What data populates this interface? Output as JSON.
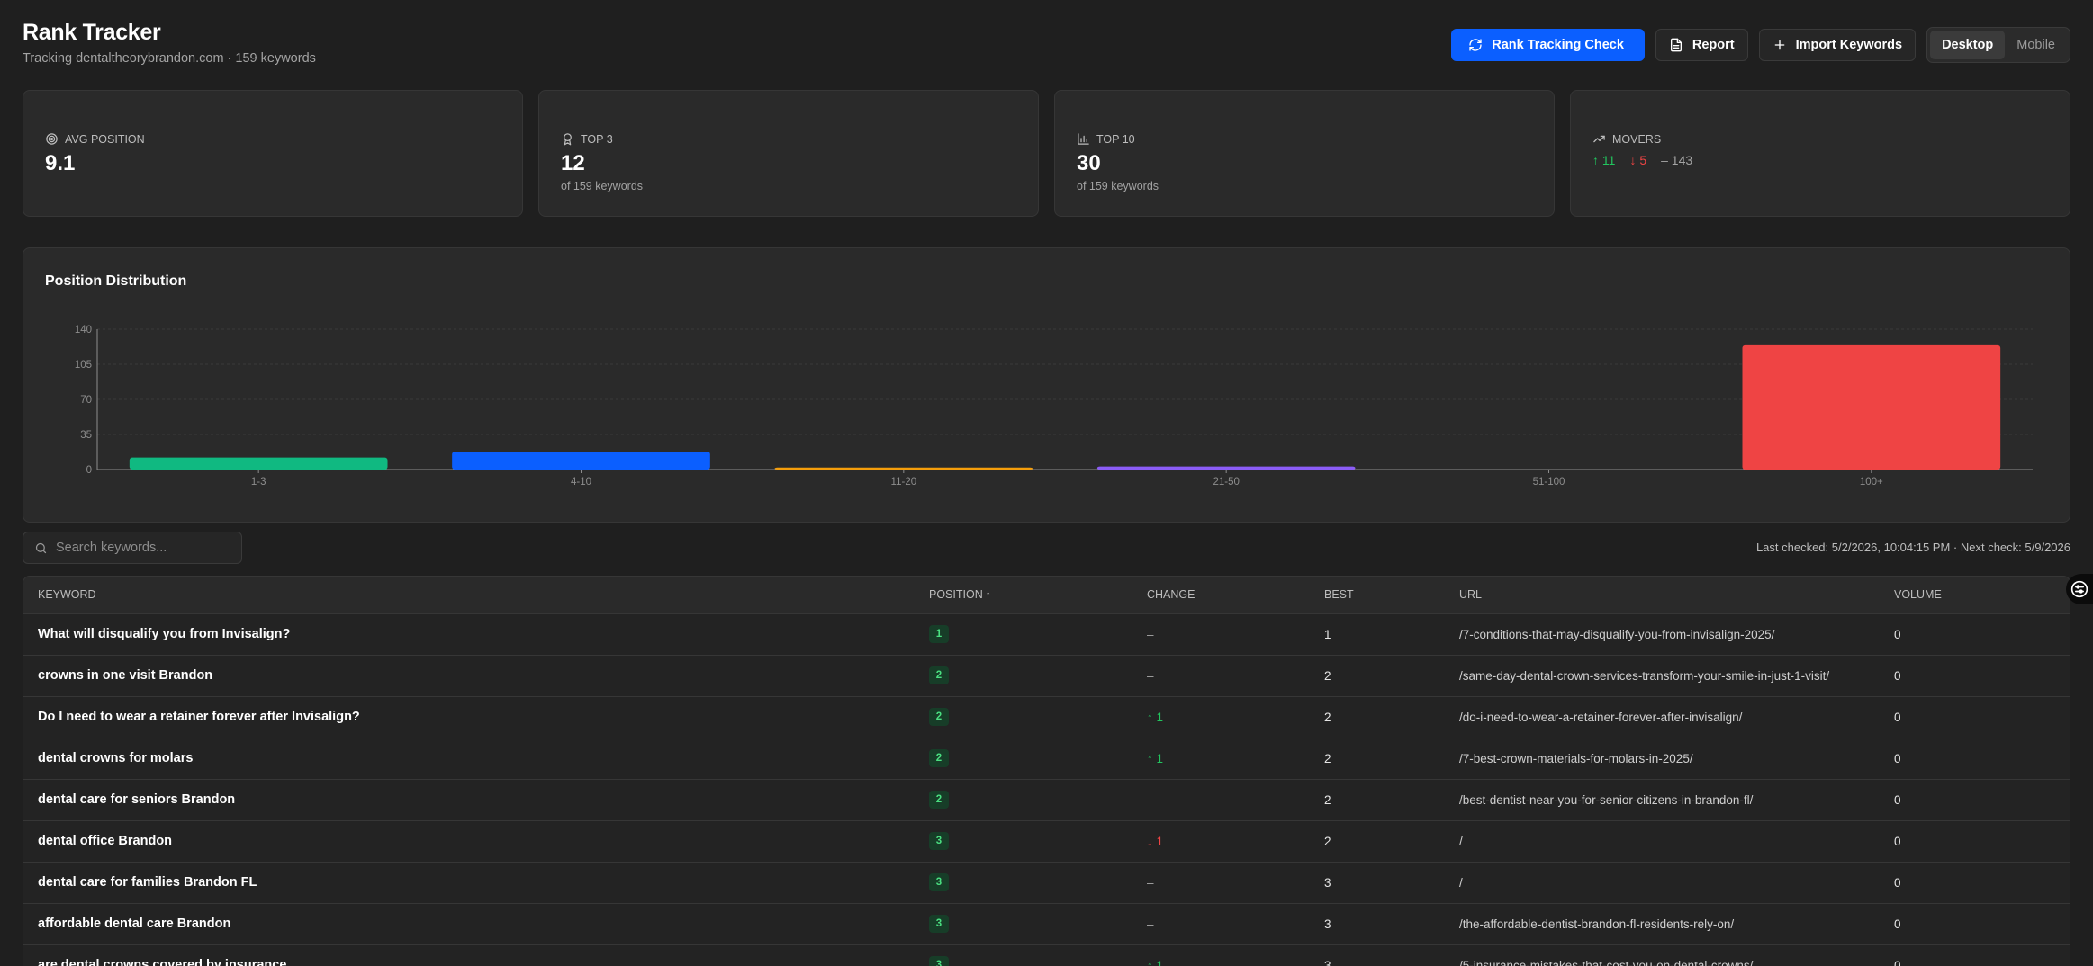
{
  "header": {
    "title": "Rank Tracker",
    "subtitle": "Tracking dentaltheorybrandon.com · 159 keywords"
  },
  "actions": {
    "rank_check_label": "Rank Tracking Check",
    "report_label": "Report",
    "import_label": "Import Keywords",
    "device_options": [
      "Desktop",
      "Mobile"
    ],
    "device_selected": "Desktop"
  },
  "stats": {
    "avg_position": {
      "label": "AVG POSITION",
      "value": "9.1"
    },
    "top3": {
      "label": "TOP 3",
      "value": "12",
      "sub": "of 159 keywords"
    },
    "top10": {
      "label": "TOP 10",
      "value": "30",
      "sub": "of 159 keywords"
    },
    "movers": {
      "label": "MOVERS",
      "up": "↑ 11",
      "down": "↓ 5",
      "flat": "– 143"
    }
  },
  "chart_title": "Position Distribution",
  "chart_data": {
    "type": "bar",
    "title": "Position Distribution",
    "categories": [
      "1-3",
      "4-10",
      "11-20",
      "21-50",
      "51-100",
      "100+"
    ],
    "values": [
      12,
      18,
      2,
      3,
      0,
      124
    ],
    "colors": [
      "#10b981",
      "#0b5fff",
      "#f59e0b",
      "#8b5cf6",
      "#6b7280",
      "#ef4444"
    ],
    "ylim": [
      0,
      140
    ],
    "yticks": [
      0,
      35,
      70,
      105,
      140
    ],
    "grid": true,
    "xlabel": "",
    "ylabel": ""
  },
  "search": {
    "placeholder": "Search keywords..."
  },
  "last_checked": "Last checked: 5/2/2026, 10:04:15 PM · Next check: 5/9/2026",
  "table": {
    "columns": [
      "KEYWORD",
      "POSITION",
      "CHANGE",
      "BEST",
      "URL",
      "VOLUME"
    ],
    "sort_indicator": "↑",
    "rows": [
      {
        "keyword": "What will disqualify you from Invisalign?",
        "position": "1",
        "change": "–",
        "change_dir": "flat",
        "best": "1",
        "url": "/7-conditions-that-may-disqualify-you-from-invisalign-2025/",
        "volume": "0"
      },
      {
        "keyword": "crowns in one visit Brandon",
        "position": "2",
        "change": "–",
        "change_dir": "flat",
        "best": "2",
        "url": "/same-day-dental-crown-services-transform-your-smile-in-just-1-visit/",
        "volume": "0"
      },
      {
        "keyword": "Do I need to wear a retainer forever after Invisalign?",
        "position": "2",
        "change": "↑ 1",
        "change_dir": "up",
        "best": "2",
        "url": "/do-i-need-to-wear-a-retainer-forever-after-invisalign/",
        "volume": "0"
      },
      {
        "keyword": "dental crowns for molars",
        "position": "2",
        "change": "↑ 1",
        "change_dir": "up",
        "best": "2",
        "url": "/7-best-crown-materials-for-molars-in-2025/",
        "volume": "0"
      },
      {
        "keyword": "dental care for seniors Brandon",
        "position": "2",
        "change": "–",
        "change_dir": "flat",
        "best": "2",
        "url": "/best-dentist-near-you-for-senior-citizens-in-brandon-fl/",
        "volume": "0"
      },
      {
        "keyword": "dental office Brandon",
        "position": "3",
        "change": "↓ 1",
        "change_dir": "down",
        "best": "2",
        "url": "/",
        "volume": "0"
      },
      {
        "keyword": "dental care for families Brandon FL",
        "position": "3",
        "change": "–",
        "change_dir": "flat",
        "best": "3",
        "url": "/",
        "volume": "0"
      },
      {
        "keyword": "affordable dental care Brandon",
        "position": "3",
        "change": "–",
        "change_dir": "flat",
        "best": "3",
        "url": "/the-affordable-dentist-brandon-fl-residents-rely-on/",
        "volume": "0"
      },
      {
        "keyword": "are dental crowns covered by insurance",
        "position": "3",
        "change": "↑ 1",
        "change_dir": "up",
        "best": "3",
        "url": "/5-insurance-mistakes-that-cost-you-on-dental-crowns/",
        "volume": "0"
      }
    ]
  }
}
